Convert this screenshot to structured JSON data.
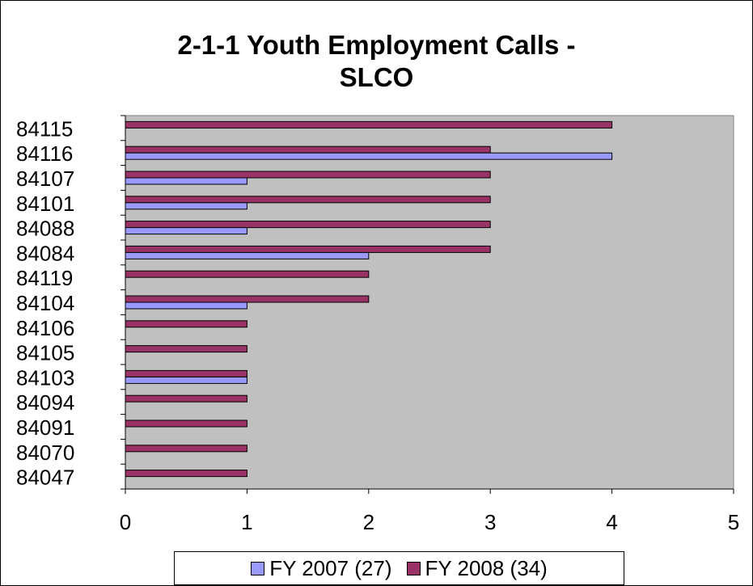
{
  "chart_data": {
    "type": "bar",
    "orientation": "horizontal",
    "title_line1": "2-1-1 Youth Employment Calls -",
    "title_line2": "SLCO",
    "categories": [
      "84115",
      "84116",
      "84107",
      "84101",
      "84088",
      "84084",
      "84119",
      "84104",
      "84106",
      "84105",
      "84103",
      "84094",
      "84091",
      "84070",
      "84047"
    ],
    "series": [
      {
        "name": "FY 2007 (27)",
        "color": "#9999ff",
        "values": [
          0,
          4,
          1,
          1,
          1,
          2,
          0,
          1,
          0,
          0,
          1,
          0,
          0,
          0,
          0
        ]
      },
      {
        "name": "FY 2008 (34)",
        "color": "#993366",
        "values": [
          4,
          3,
          3,
          3,
          3,
          3,
          2,
          2,
          1,
          1,
          1,
          1,
          1,
          1,
          1
        ]
      }
    ],
    "x_ticks": [
      "0",
      "1",
      "2",
      "3",
      "4",
      "5"
    ],
    "xlim": [
      0,
      5
    ],
    "grid": false,
    "plot_background": "#c0c0c0",
    "legend_position": "bottom"
  }
}
